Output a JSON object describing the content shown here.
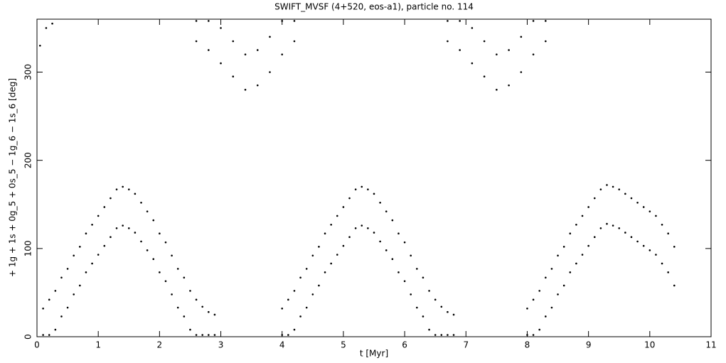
{
  "chart_data": {
    "type": "scatter",
    "title": "SWIFT_MVSF (4+520, eos-a1), particle no. 114",
    "xlabel": "t [Myr]",
    "ylabel": "+ 1g + 1s + 0g_5 + 0s_5 − 1g_6 − 1s_6 [deg]",
    "color": "#000000",
    "xlim": [
      0,
      11
    ],
    "ylim": [
      0,
      360
    ],
    "xticks": [
      0,
      1,
      2,
      3,
      4,
      5,
      6,
      7,
      8,
      9,
      10,
      11
    ],
    "yticks": [
      0,
      100,
      200,
      300
    ],
    "x": [
      0.05,
      0.15,
      0.25,
      0.1,
      0.1,
      0.2,
      0.2,
      0.3,
      0.3,
      0.4,
      0.4,
      0.5,
      0.5,
      0.6,
      0.6,
      0.7,
      0.7,
      0.8,
      0.8,
      0.9,
      0.9,
      1.0,
      1.0,
      1.1,
      1.1,
      1.2,
      1.2,
      1.3,
      1.3,
      1.4,
      1.4,
      1.5,
      1.5,
      1.6,
      1.6,
      1.7,
      1.7,
      1.8,
      1.8,
      1.9,
      1.9,
      2.0,
      2.0,
      2.1,
      2.1,
      2.2,
      2.2,
      2.3,
      2.3,
      2.4,
      2.4,
      2.5,
      2.5,
      2.6,
      2.6,
      2.7,
      2.7,
      2.8,
      2.8,
      2.9,
      2.9,
      2.6,
      2.6,
      2.8,
      2.8,
      3.0,
      3.0,
      3.2,
      3.2,
      3.4,
      3.4,
      3.6,
      3.6,
      3.8,
      3.8,
      4.0,
      4.0,
      4.2,
      4.2,
      4.0,
      4.0,
      4.1,
      4.1,
      4.2,
      4.2,
      4.3,
      4.3,
      4.4,
      4.4,
      4.5,
      4.5,
      4.6,
      4.6,
      4.7,
      4.7,
      4.8,
      4.8,
      4.9,
      4.9,
      5.0,
      5.0,
      5.1,
      5.1,
      5.2,
      5.2,
      5.3,
      5.3,
      5.4,
      5.4,
      5.5,
      5.5,
      5.6,
      5.6,
      5.7,
      5.7,
      5.8,
      5.8,
      5.9,
      5.9,
      6.0,
      6.0,
      6.1,
      6.1,
      6.2,
      6.2,
      6.3,
      6.3,
      6.4,
      6.4,
      6.5,
      6.5,
      6.6,
      6.6,
      6.7,
      6.7,
      6.8,
      6.8,
      6.7,
      6.7,
      6.9,
      6.9,
      7.1,
      7.1,
      7.3,
      7.3,
      7.5,
      7.5,
      7.7,
      7.7,
      7.9,
      7.9,
      8.1,
      8.1,
      8.3,
      8.3,
      8.0,
      8.0,
      8.1,
      8.1,
      8.2,
      8.2,
      8.3,
      8.3,
      8.4,
      8.4,
      8.5,
      8.5,
      8.6,
      8.6,
      8.7,
      8.7,
      8.8,
      8.8,
      8.9,
      8.9,
      9.0,
      9.0,
      9.1,
      9.1,
      9.2,
      9.2,
      9.3,
      9.3,
      9.4,
      9.4,
      9.5,
      9.5,
      9.6,
      9.6,
      9.7,
      9.7,
      9.8,
      9.8,
      9.9,
      9.9,
      10.0,
      10.0,
      10.1,
      10.1,
      10.2,
      10.2,
      10.3,
      10.3,
      10.4,
      10.4
    ],
    "values": [
      330,
      350,
      355,
      2,
      32,
      2,
      42,
      8,
      52,
      23,
      67,
      33,
      77,
      48,
      92,
      58,
      102,
      73,
      117,
      83,
      127,
      93,
      137,
      103,
      147,
      113,
      157,
      123,
      167,
      126,
      170,
      123,
      167,
      118,
      162,
      108,
      152,
      98,
      142,
      88,
      132,
      73,
      117,
      63,
      107,
      48,
      92,
      33,
      77,
      23,
      67,
      8,
      52,
      2,
      42,
      2,
      34,
      2,
      28,
      2,
      25,
      335,
      358,
      325,
      358,
      310,
      350,
      295,
      335,
      280,
      320,
      285,
      325,
      300,
      340,
      320,
      358,
      335,
      358,
      2,
      32,
      2,
      42,
      8,
      52,
      23,
      67,
      33,
      77,
      48,
      92,
      58,
      102,
      73,
      117,
      83,
      127,
      93,
      137,
      103,
      147,
      113,
      157,
      123,
      167,
      126,
      170,
      123,
      167,
      118,
      162,
      108,
      152,
      98,
      142,
      88,
      132,
      73,
      117,
      63,
      107,
      48,
      92,
      33,
      77,
      23,
      67,
      8,
      52,
      2,
      42,
      2,
      34,
      2,
      28,
      2,
      25,
      335,
      358,
      325,
      358,
      310,
      350,
      295,
      335,
      280,
      320,
      285,
      325,
      300,
      340,
      320,
      358,
      335,
      358,
      2,
      32,
      2,
      42,
      8,
      52,
      23,
      67,
      33,
      77,
      48,
      92,
      58,
      102,
      73,
      117,
      83,
      127,
      93,
      137,
      103,
      147,
      113,
      157,
      123,
      167,
      128,
      172,
      126,
      170,
      123,
      167,
      118,
      162,
      113,
      157,
      108,
      152,
      103,
      147,
      98,
      142,
      93,
      137,
      83,
      127,
      73,
      117,
      58,
      102
    ]
  }
}
